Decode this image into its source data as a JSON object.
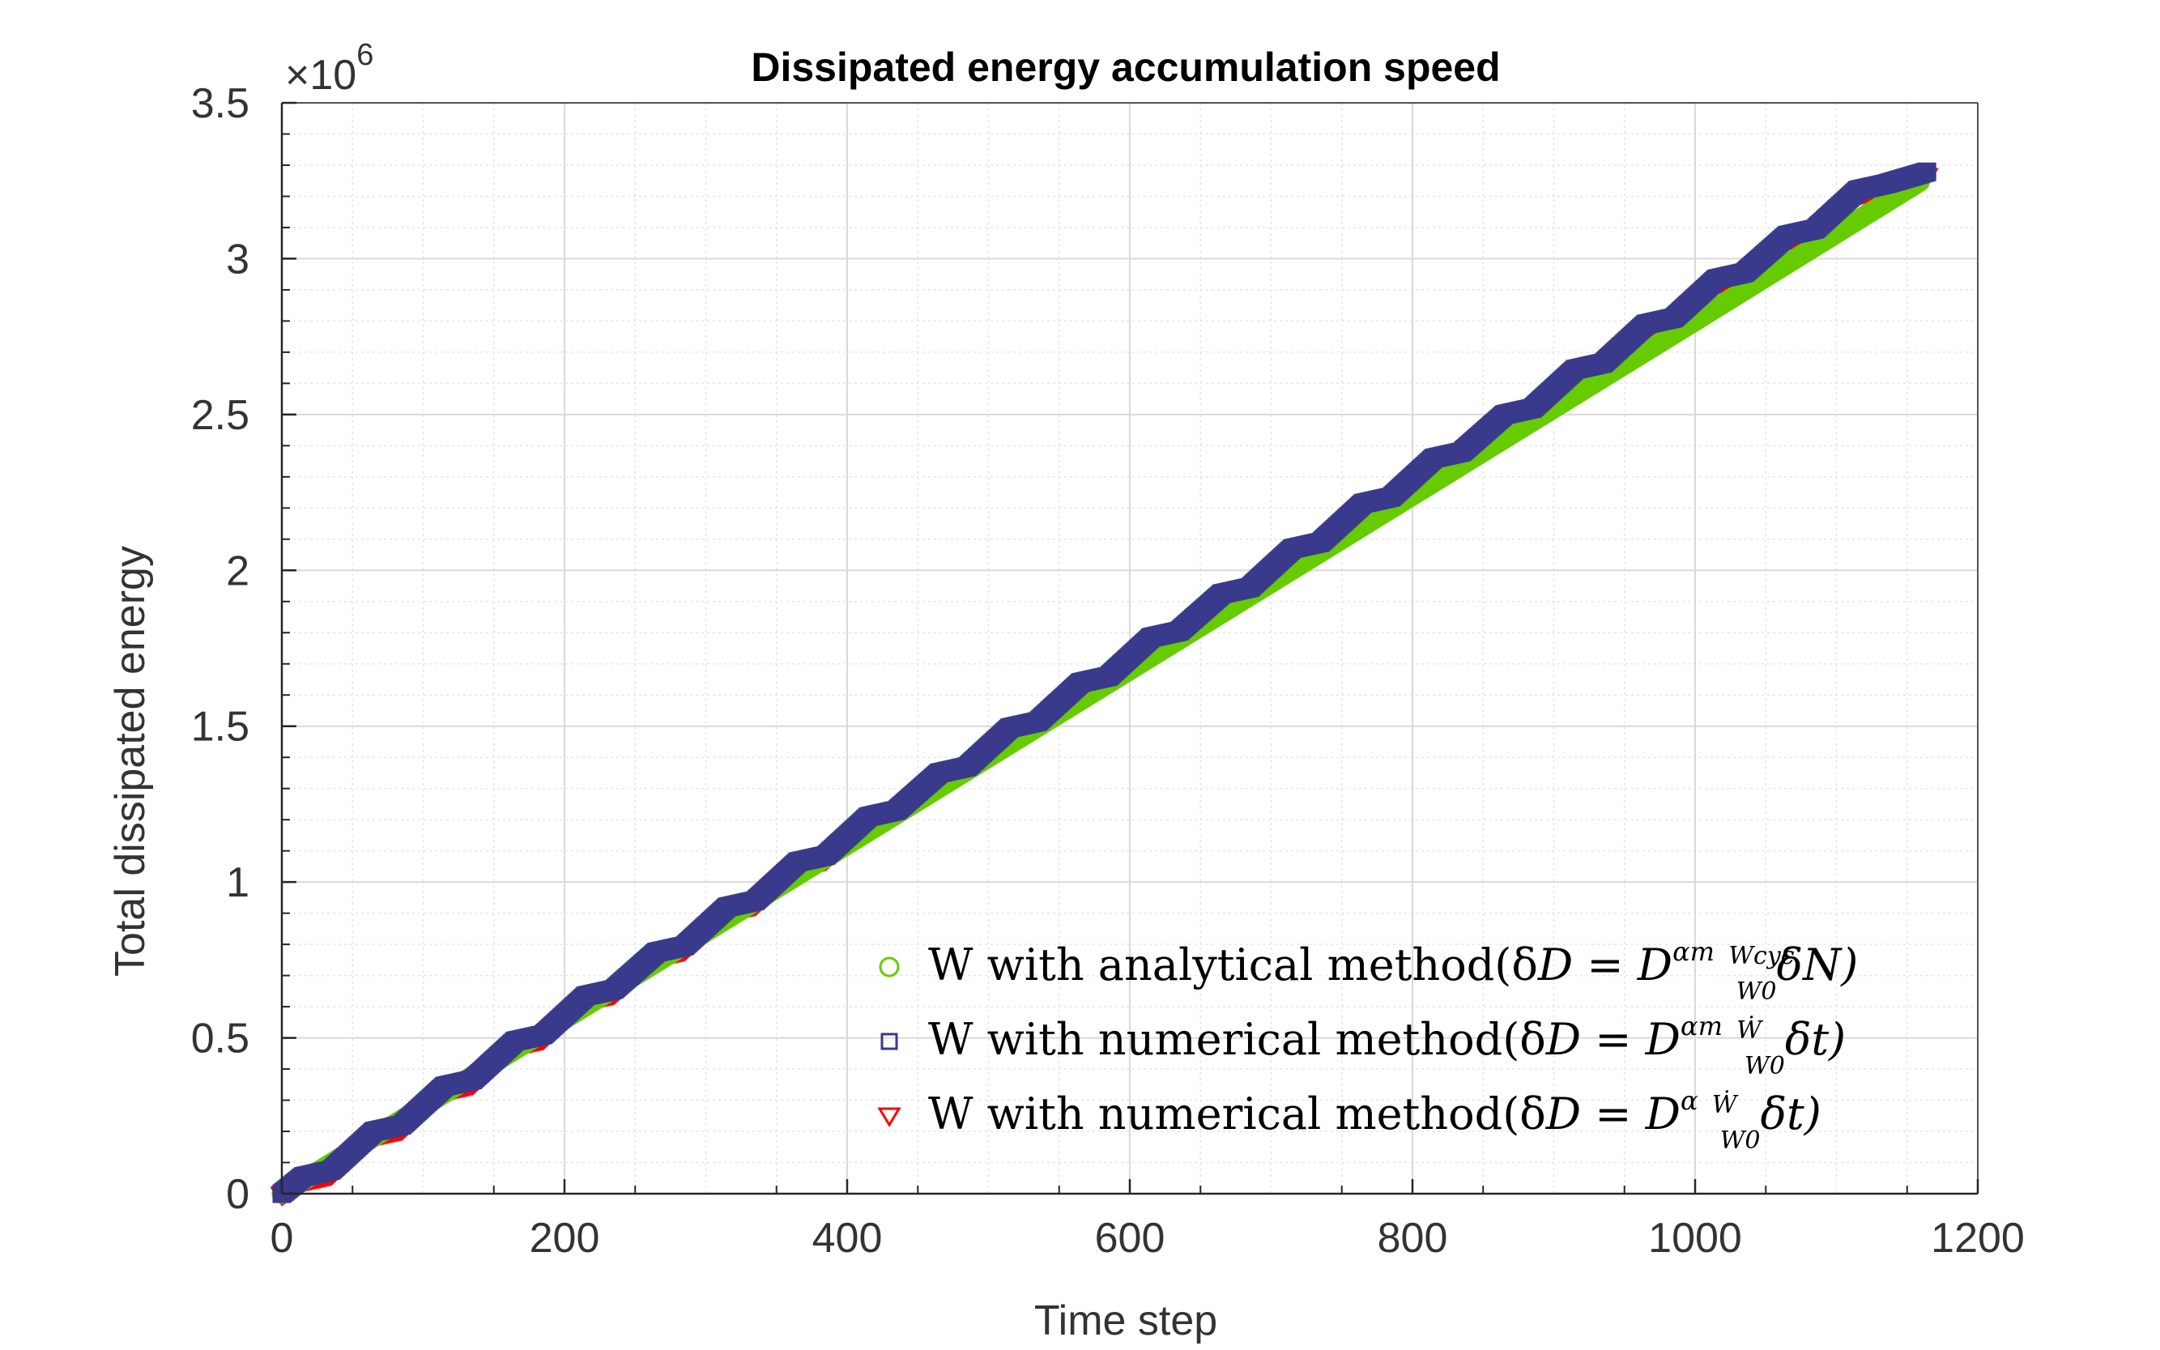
{
  "chart_data": {
    "type": "scatter",
    "title": "Dissipated energy accumulation speed",
    "xlabel": "Time step",
    "ylabel": "Total dissipated energy",
    "exponent_label": "×10",
    "exponent_power": "6",
    "xlim": [
      0,
      1200
    ],
    "ylim": [
      0,
      3.5
    ],
    "y_multiplier": 1000000,
    "xticks": [
      "0",
      "200",
      "400",
      "600",
      "800",
      "1000",
      "1200"
    ],
    "yticks": [
      "0",
      "0.5",
      "1",
      "1.5",
      "2",
      "2.5",
      "3",
      "3.5"
    ],
    "grid": true,
    "minor_grid": true,
    "legend_position": "bottom-right",
    "series": [
      {
        "name": "W with analytical method(δD = D^αm W_cyc/W_0 δN)",
        "marker": "circle",
        "color": "#66cc00",
        "x": [
          0,
          200,
          400,
          600,
          800,
          1000,
          1160
        ],
        "y": [
          0,
          0.56,
          1.12,
          1.68,
          2.24,
          2.8,
          3.25
        ]
      },
      {
        "name": "W with numerical method(δD = D^αm Ẇ/W_0 δt)",
        "marker": "square",
        "color": "#3a3a8c",
        "x": [
          0,
          15,
          20,
          35,
          65,
          70,
          85,
          115,
          120,
          135,
          165,
          170,
          185,
          215,
          220,
          235,
          265,
          270,
          285,
          315,
          320,
          335,
          365,
          370,
          385,
          415,
          420,
          435,
          465,
          470,
          485,
          515,
          520,
          535,
          565,
          570,
          585,
          615,
          620,
          635,
          665,
          670,
          685,
          715,
          720,
          735,
          765,
          770,
          785,
          815,
          820,
          835,
          865,
          870,
          885,
          915,
          920,
          935,
          965,
          970,
          985,
          1015,
          1020,
          1035,
          1065,
          1070,
          1085,
          1115,
          1120,
          1135,
          1165
        ],
        "y": [
          0,
          0.055,
          0.06,
          0.075,
          0.2,
          0.205,
          0.22,
          0.345,
          0.35,
          0.365,
          0.49,
          0.495,
          0.51,
          0.635,
          0.64,
          0.655,
          0.775,
          0.78,
          0.795,
          0.92,
          0.925,
          0.94,
          1.065,
          1.07,
          1.085,
          1.21,
          1.215,
          1.23,
          1.35,
          1.355,
          1.37,
          1.495,
          1.5,
          1.515,
          1.64,
          1.645,
          1.66,
          1.785,
          1.79,
          1.805,
          1.925,
          1.93,
          1.945,
          2.07,
          2.075,
          2.09,
          2.215,
          2.22,
          2.235,
          2.36,
          2.365,
          2.38,
          2.5,
          2.505,
          2.52,
          2.645,
          2.65,
          2.665,
          2.79,
          2.795,
          2.81,
          2.935,
          2.94,
          2.955,
          3.075,
          3.08,
          3.095,
          3.22,
          3.225,
          3.24,
          3.28
        ]
      },
      {
        "name": "W with numerical method(δD = D^α Ẇ/W_0 δt)",
        "marker": "triangle-down",
        "color": "#ff0000",
        "x": [
          0,
          15,
          20,
          35,
          65,
          70,
          85,
          115,
          120,
          135,
          165,
          170,
          185,
          215,
          220,
          235,
          265,
          270,
          285,
          315,
          320,
          335,
          365,
          370,
          385,
          415,
          420,
          435,
          465,
          470,
          485,
          515,
          520,
          535,
          565,
          570,
          585,
          615,
          620,
          635,
          665,
          670,
          685,
          715,
          720,
          735,
          765,
          770,
          785,
          815,
          820,
          835,
          865,
          870,
          885,
          915,
          920,
          935,
          965,
          970,
          985,
          1015,
          1020,
          1035,
          1065,
          1070,
          1085,
          1115,
          1120,
          1135,
          1165
        ],
        "y": [
          0,
          0.045,
          0.05,
          0.065,
          0.19,
          0.195,
          0.21,
          0.335,
          0.34,
          0.355,
          0.48,
          0.485,
          0.5,
          0.625,
          0.63,
          0.645,
          0.765,
          0.77,
          0.785,
          0.91,
          0.915,
          0.93,
          1.055,
          1.06,
          1.075,
          1.2,
          1.205,
          1.22,
          1.34,
          1.345,
          1.36,
          1.485,
          1.49,
          1.505,
          1.63,
          1.635,
          1.65,
          1.775,
          1.78,
          1.795,
          1.915,
          1.92,
          1.935,
          2.06,
          2.065,
          2.08,
          2.205,
          2.21,
          2.225,
          2.35,
          2.355,
          2.37,
          2.49,
          2.495,
          2.51,
          2.635,
          2.64,
          2.655,
          2.78,
          2.785,
          2.8,
          2.925,
          2.93,
          2.945,
          3.065,
          3.07,
          3.085,
          3.21,
          3.215,
          3.23,
          3.27
        ]
      }
    ],
    "legend": {
      "entries": [
        {
          "prefix": "W with analytical method(δ",
          "D": "D",
          "eq": " = ",
          "base": "D",
          "sup": "αm",
          "frac_num": "Wcyc",
          "frac_den": "W0",
          "suffix": "δN)"
        },
        {
          "prefix": "W with numerical method(δ",
          "D": "D",
          "eq": " = ",
          "base": "D",
          "sup": "αm",
          "frac_num": "Ẇ",
          "frac_den": "W0",
          "suffix": "δt)"
        },
        {
          "prefix": "W with numerical method(δ",
          "D": "D",
          "eq": " = ",
          "base": "D",
          "sup": "α",
          "frac_num": "Ẇ",
          "frac_den": "W0",
          "suffix": "δt)"
        }
      ]
    }
  }
}
